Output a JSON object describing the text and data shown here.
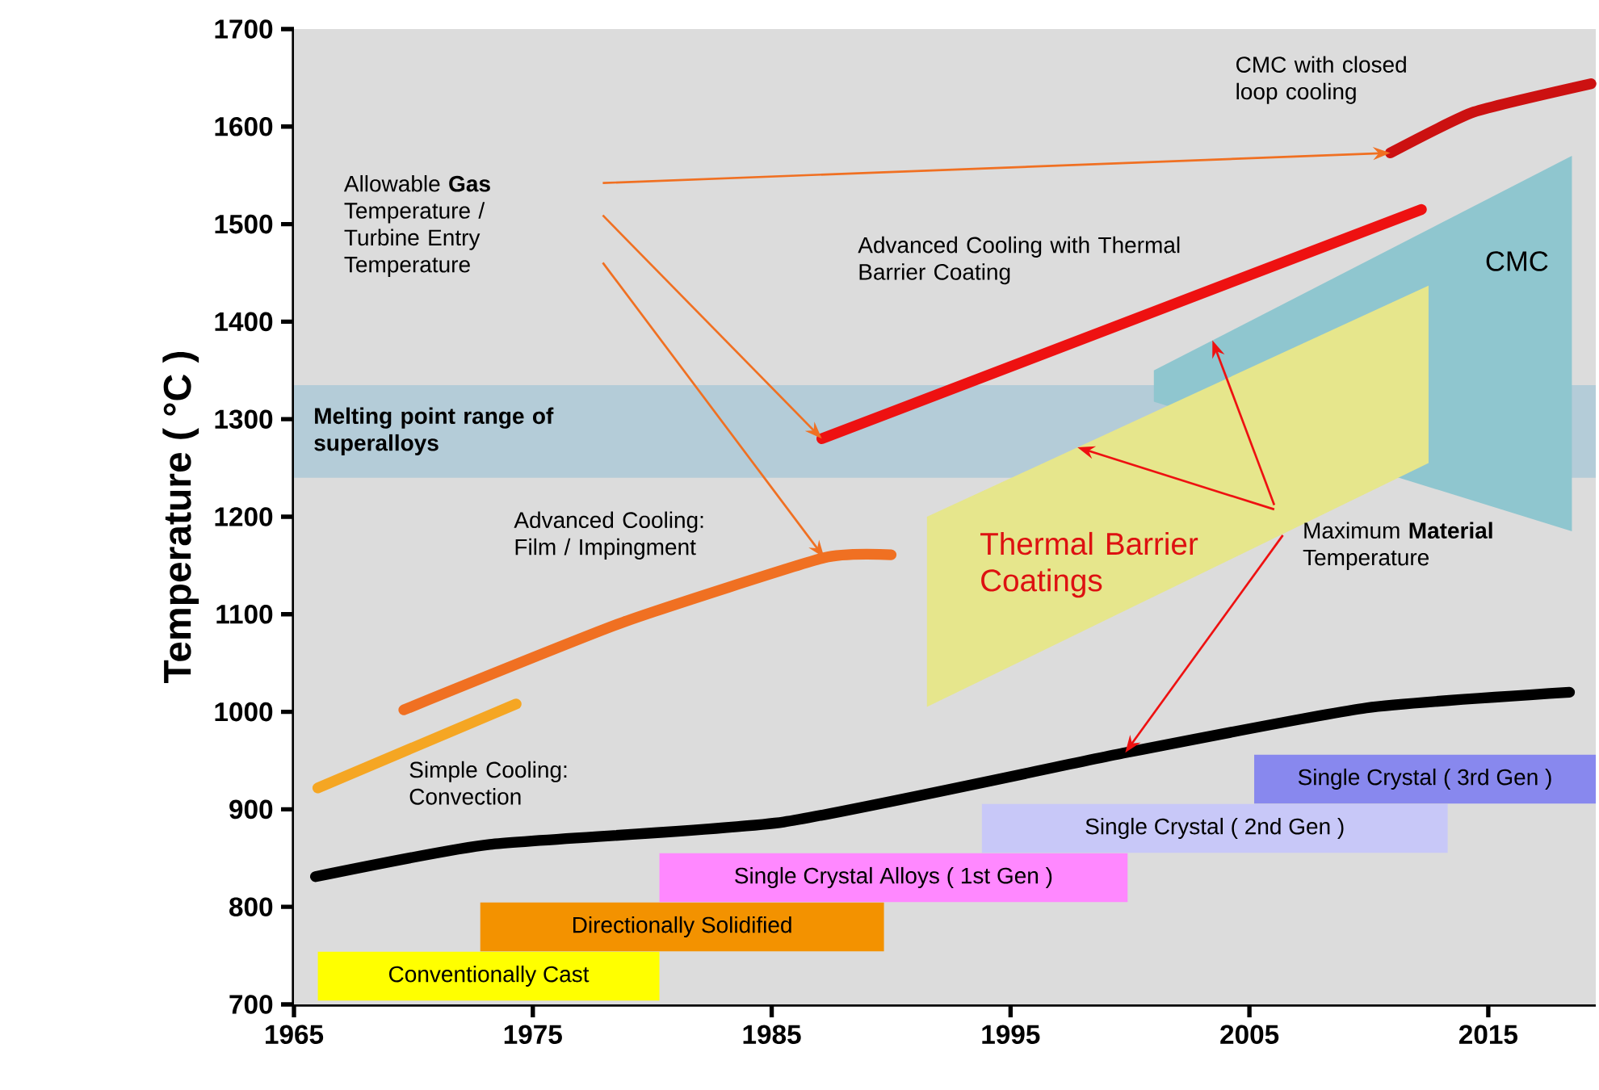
{
  "chart_data": {
    "type": "line",
    "ylabel": "Temperature ( °C )",
    "xlim": [
      1965,
      2019.5
    ],
    "ylim": [
      700,
      1700
    ],
    "xticks": [
      1965,
      1975,
      1985,
      1995,
      2005,
      2015
    ],
    "yticks": [
      700,
      800,
      900,
      1000,
      1100,
      1200,
      1300,
      1400,
      1500,
      1600,
      1700
    ],
    "series": [
      {
        "type": "area",
        "name": "CMC",
        "color": "#8fc6cf",
        "x": [
          2001,
          2018.5,
          2018.5,
          2001
        ],
        "values": [
          1350,
          1570,
          1185,
          1318
        ]
      },
      {
        "type": "area",
        "name": "Thermal Barrier Coatings",
        "color": "#e6e68c",
        "x": [
          1991.5,
          2012.5,
          2012.5,
          1991.5
        ],
        "values": [
          1200,
          1437,
          1255,
          1005
        ]
      },
      {
        "color": "#000000",
        "x": [
          1965.9,
          1973.2,
          1985.5,
          1999.8,
          2009.9,
          2018.4
        ],
        "values": [
          831,
          864,
          887,
          958,
          1004,
          1020
        ]
      },
      {
        "name": "Simple Cooling: Convection",
        "color": "#f5a623",
        "x": [
          1966,
          1974.3
        ],
        "values": [
          922,
          1008
        ]
      },
      {
        "name": "Advanced Cooling: Film / Impingment",
        "color": "#f07022",
        "x": [
          1969.6,
          1978.8,
          1987.2,
          1990
        ],
        "values": [
          1002,
          1092,
          1158,
          1161
        ]
      },
      {
        "name": "Advanced Cooling with Thermal Barrier Coating",
        "color": "#ee1111",
        "x": [
          1987.1,
          2012.2
        ],
        "values": [
          1280,
          1515
        ]
      },
      {
        "name": "CMC with closed loop cooling",
        "color": "#cc1111",
        "x": [
          2010.9,
          2014.4,
          2019.3
        ],
        "values": [
          1573,
          1615,
          1644
        ]
      }
    ],
    "bands": [
      {
        "axis": "y",
        "from": 1240,
        "to": 1335,
        "label": "Melting point range of superalloys",
        "color": "#b4ccd8"
      },
      {
        "axis": "x",
        "from": 1966,
        "to": 1980.3,
        "label": "Conventionally Cast",
        "color": "#ffff00"
      },
      {
        "axis": "x",
        "from": 1972.8,
        "to": 1989.7,
        "label": "Directionally Solidified",
        "color": "#f39200"
      },
      {
        "axis": "x",
        "from": 1980.3,
        "to": 1999.9,
        "label": "Single Crystal Alloys ( 1st Gen )",
        "color": "#ff88ff"
      },
      {
        "axis": "x",
        "from": 1993.8,
        "to": 2013.3,
        "label": "Single Crystal ( 2nd Gen )",
        "color": "#c8c8f8"
      },
      {
        "axis": "x",
        "from": 2005.2,
        "to": 2019.5,
        "label": "Single Crystal ( 3rd Gen )",
        "color": "#8888ee"
      }
    ],
    "annotations": [
      "Allowable **Gas** Temperature / Turbine Entry Temperature",
      {
        "text": "Maximum **Material** Temperature",
        "x": 1999.8,
        "y": 958
      }
    ]
  }
}
